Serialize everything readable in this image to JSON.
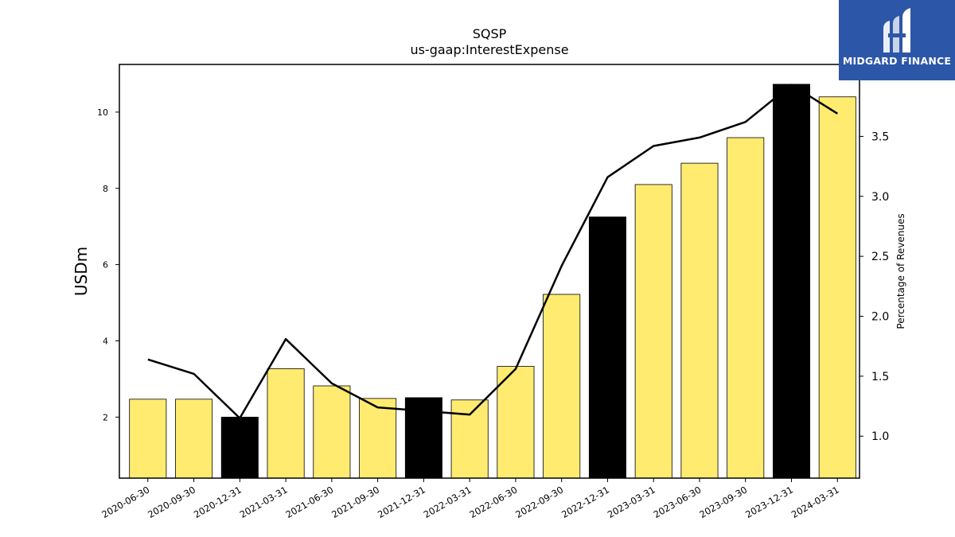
{
  "logo": {
    "text": "MIDGARD FINANCE"
  },
  "colors": {
    "bar_default": "#ffeb70",
    "bar_highlight": "#000000",
    "line": "#000000",
    "logo_bg": "#2c56a8"
  },
  "chart_data": {
    "type": "bar",
    "title": "SQSP",
    "subtitle": "us-gaap:InterestExpense",
    "ylabel": "USDm",
    "y2label": "Percentage of Revenues",
    "categories": [
      "2020-06-30",
      "2020-09-30",
      "2020-12-31",
      "2021-03-31",
      "2021-06-30",
      "2021-09-30",
      "2021-12-31",
      "2022-03-31",
      "2022-06-30",
      "2022-09-30",
      "2022-12-31",
      "2023-03-31",
      "2023-06-30",
      "2023-09-30",
      "2023-12-31",
      "2024-03-31"
    ],
    "series": [
      {
        "type": "bar",
        "axis": "left",
        "values": [
          2.47,
          2.47,
          2.0,
          3.27,
          2.82,
          2.49,
          2.51,
          2.45,
          3.33,
          5.22,
          7.25,
          8.1,
          8.66,
          9.33,
          10.73,
          10.4
        ],
        "highlight": [
          false,
          false,
          true,
          false,
          false,
          false,
          true,
          false,
          false,
          false,
          true,
          false,
          false,
          false,
          true,
          false
        ]
      },
      {
        "type": "line",
        "axis": "right",
        "values": [
          1.64,
          1.52,
          1.15,
          1.81,
          1.44,
          1.24,
          1.21,
          1.18,
          1.56,
          2.42,
          3.16,
          3.42,
          3.49,
          3.62,
          3.93,
          3.69
        ]
      }
    ],
    "ylim": [
      0.4,
      11.25
    ],
    "yticks": [
      2,
      4,
      6,
      8,
      10
    ],
    "y2lim": [
      0.65,
      4.1
    ],
    "y2ticks": [
      "1.0",
      "1.5",
      "2.0",
      "2.5",
      "3.0",
      "3.5"
    ],
    "grid": false
  }
}
